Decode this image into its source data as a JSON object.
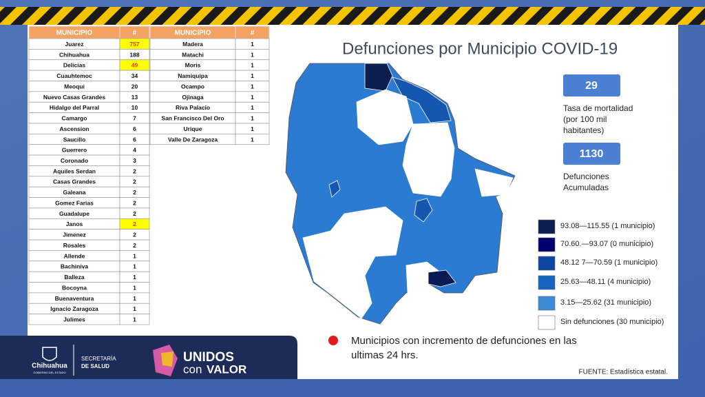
{
  "header": {
    "title": "Defunciones por Municipio COVID-19"
  },
  "table_left": {
    "columns": [
      "MUNICIPIO",
      "#"
    ],
    "rows": [
      [
        "Juarez",
        757
      ],
      [
        "Chihuahua",
        188
      ],
      [
        "Delicias",
        49
      ],
      [
        "Cuauhtemoc",
        34
      ],
      [
        "Meoqui",
        20
      ],
      [
        "Nuevo Casas Grandes",
        13
      ],
      [
        "Hidalgo del Parral",
        10
      ],
      [
        "Camargo",
        7
      ],
      [
        "Ascension",
        6
      ],
      [
        "Saucillo",
        6
      ],
      [
        "Guerrero",
        4
      ],
      [
        "Coronado",
        3
      ],
      [
        "Aquiles Serdan",
        2
      ],
      [
        "Casas Grandes",
        2
      ],
      [
        "Galeana",
        2
      ],
      [
        "Gomez Farias",
        2
      ],
      [
        "Guadalupe",
        2
      ],
      [
        "Janos",
        2
      ],
      [
        "Jimenez",
        2
      ],
      [
        "Rosales",
        2
      ],
      [
        "Allende",
        1
      ],
      [
        "Bachiniva",
        1
      ],
      [
        "Balleza",
        1
      ],
      [
        "Bocoyna",
        1
      ],
      [
        "Buenaventura",
        1
      ],
      [
        "Ignacio Zaragoza",
        1
      ],
      [
        "Julimes",
        1
      ]
    ]
  },
  "table_right": {
    "columns": [
      "MUNICIPIO",
      "#"
    ],
    "rows": [
      [
        "Madera",
        1
      ],
      [
        "Matachi",
        1
      ],
      [
        "Moris",
        1
      ],
      [
        "Namiquipa",
        1
      ],
      [
        "Ocampo",
        1
      ],
      [
        "Ojinaga",
        1
      ],
      [
        "Riva Palacio",
        1
      ],
      [
        "San Francisco Del Oro",
        1
      ],
      [
        "Urique",
        1
      ],
      [
        "Valle De Zaragoza",
        1
      ]
    ]
  },
  "stats": [
    {
      "value": 29,
      "label_lines": [
        "Tasa de mortalidad",
        "(por 100 mil",
        "habitantes)"
      ]
    },
    {
      "value": 1130,
      "label_lines": [
        "Defunciones",
        "Acumuladas"
      ]
    }
  ],
  "legend": [
    {
      "label": "93.08—115.55 (1 municipio)",
      "color": "#0c1f4e"
    },
    {
      "label": "70.60.—93.07 (0 municipio)",
      "color": "#00006e"
    },
    {
      "label": "48.12 7—70.59 (1 municipio)",
      "color": "#0d47a1"
    },
    {
      "label": "25.63—48.11 (4 municipio)",
      "color": "#1565c0"
    },
    {
      "label": "3.15—25.62 (31 municipio)",
      "color": "#3d8ad6"
    },
    {
      "label": "Sin defunciones (30 municipio)",
      "color": "#ffffff"
    }
  ],
  "note": {
    "lines": [
      "Municipios  con incremento de defunciones  en las",
      "ultimas 24 hrs."
    ]
  },
  "source": "FUENTE: Estadística estatal.",
  "footer": {
    "government": "Chihuahua",
    "government_sub": "GOBIERNO DEL ESTADO",
    "department": [
      "SECRETARÍA",
      "DE SALUD"
    ],
    "campaign": [
      "UNIDOS",
      "con",
      "VALOR"
    ]
  }
}
